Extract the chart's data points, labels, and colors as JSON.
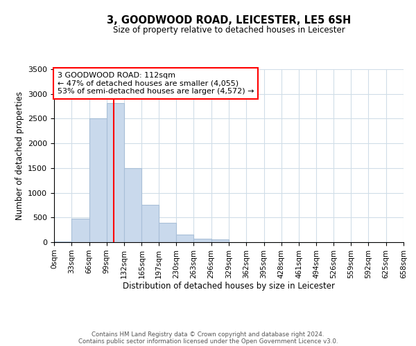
{
  "title": "3, GOODWOOD ROAD, LEICESTER, LE5 6SH",
  "subtitle": "Size of property relative to detached houses in Leicester",
  "xlabel": "Distribution of detached houses by size in Leicester",
  "ylabel": "Number of detached properties",
  "bin_edges": [
    0,
    33,
    66,
    99,
    132,
    165,
    197,
    230,
    263,
    296,
    329,
    362,
    395,
    428,
    461,
    494,
    526,
    559,
    592,
    625,
    658
  ],
  "bin_labels": [
    "0sqm",
    "33sqm",
    "66sqm",
    "99sqm",
    "132sqm",
    "165sqm",
    "197sqm",
    "230sqm",
    "263sqm",
    "296sqm",
    "329sqm",
    "362sqm",
    "395sqm",
    "428sqm",
    "461sqm",
    "494sqm",
    "526sqm",
    "559sqm",
    "592sqm",
    "625sqm",
    "658sqm"
  ],
  "bar_heights": [
    20,
    480,
    2500,
    2820,
    1500,
    750,
    390,
    150,
    75,
    55,
    0,
    0,
    0,
    0,
    0,
    0,
    0,
    0,
    0,
    0
  ],
  "bar_color": "#c9d9ec",
  "bar_edgecolor": "#a8bfd8",
  "vline_x": 112,
  "vline_color": "red",
  "ylim": [
    0,
    3500
  ],
  "yticks": [
    0,
    500,
    1000,
    1500,
    2000,
    2500,
    3000,
    3500
  ],
  "annotation_box_text": "3 GOODWOOD ROAD: 112sqm\n← 47% of detached houses are smaller (4,055)\n53% of semi-detached houses are larger (4,572) →",
  "box_edgecolor": "red",
  "footnote1": "Contains HM Land Registry data © Crown copyright and database right 2024.",
  "footnote2": "Contains public sector information licensed under the Open Government Licence v3.0.",
  "bg_color": "#ffffff",
  "grid_color": "#d0dde8"
}
